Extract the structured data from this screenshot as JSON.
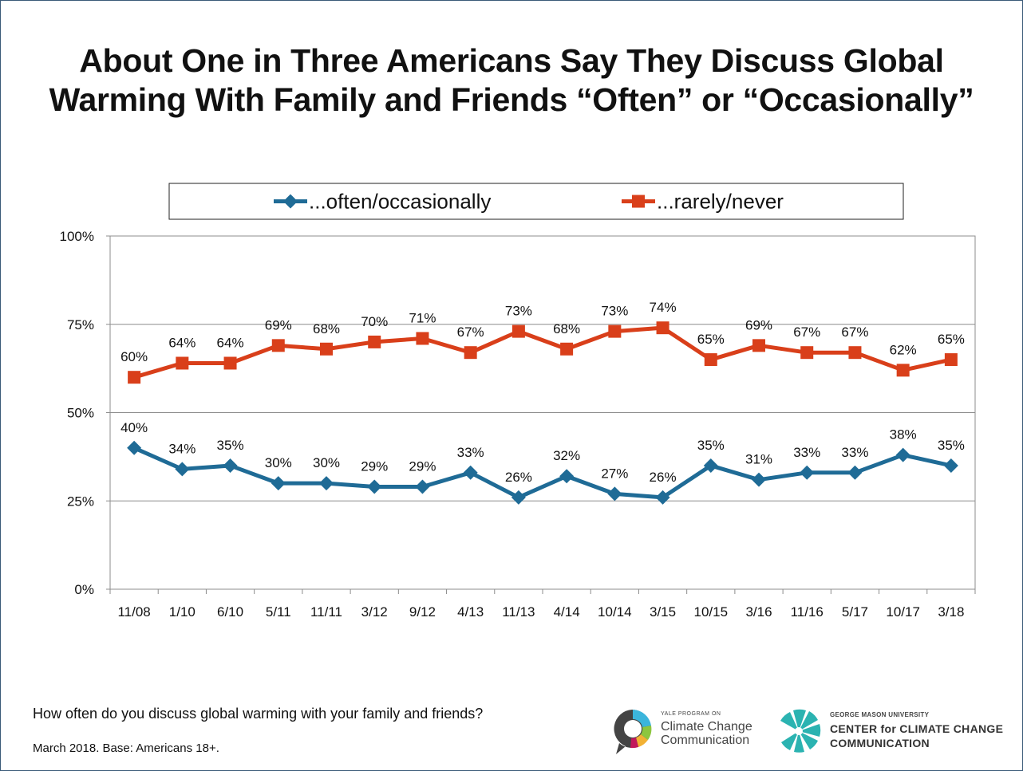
{
  "title": {
    "line1": "About One in Three Americans Say They Discuss Global",
    "line2": "Warming With Family and Friends “Often” or “Occasionally”"
  },
  "chart_data": {
    "type": "line",
    "categories": [
      "11/08",
      "1/10",
      "6/10",
      "5/11",
      "11/11",
      "3/12",
      "9/12",
      "4/13",
      "11/13",
      "4/14",
      "10/14",
      "3/15",
      "10/15",
      "3/16",
      "11/16",
      "5/17",
      "10/17",
      "3/18"
    ],
    "series": [
      {
        "name": "...often/occasionally",
        "color": "#1f6b96",
        "marker": "diamond",
        "values": [
          40,
          34,
          35,
          30,
          30,
          29,
          29,
          33,
          26,
          32,
          27,
          26,
          35,
          31,
          33,
          33,
          38,
          35
        ]
      },
      {
        "name": "...rarely/never",
        "color": "#d93f1a",
        "marker": "square",
        "values": [
          60,
          64,
          64,
          69,
          68,
          70,
          71,
          67,
          73,
          68,
          73,
          74,
          65,
          69,
          67,
          67,
          62,
          65
        ]
      }
    ],
    "ylim": [
      0,
      100
    ],
    "yticks": [
      0,
      25,
      50,
      75,
      100
    ],
    "ytick_labels": [
      "0%",
      "25%",
      "50%",
      "75%",
      "100%"
    ],
    "value_suffix": "%",
    "grid": true,
    "legend": "top-center"
  },
  "footnote": {
    "question": "How often do you discuss global warming with your family and friends?",
    "base": "March 2018. Base: Americans 18+."
  },
  "logos": {
    "yale": {
      "small": "YALE PROGRAM ON",
      "line1": "Climate Change",
      "line2": "Communication"
    },
    "gmu": {
      "small": "GEORGE MASON UNIVERSITY",
      "line1": "CENTER for CLIMATE CHANGE",
      "line2": "COMMUNICATION"
    }
  }
}
